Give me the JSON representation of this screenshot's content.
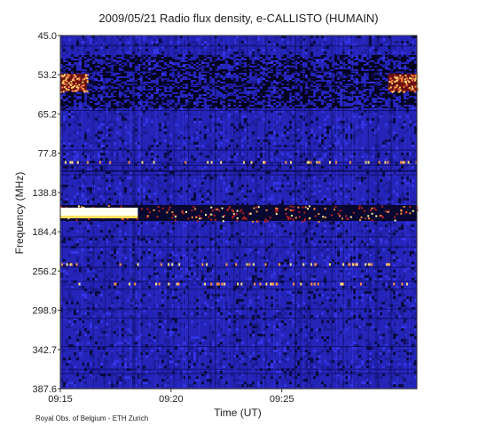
{
  "chart_data": {
    "type": "heatmap",
    "title": "2009/05/21  Radio flux density, e-CALLISTO (HUMAIN)",
    "xlabel": "Time (UT)",
    "ylabel": "Frequency (MHz)",
    "credit": "Royal Obs. of Belgium - ETH Zurich",
    "y_ticks": [
      "45.0",
      "53.2",
      "65.2",
      "77.8",
      "138.8",
      "184.4",
      "256.2",
      "298.9",
      "342.7",
      "387.6"
    ],
    "x_ticks": [
      {
        "label": "09:15",
        "minutes": 0
      },
      {
        "label": "09:20",
        "minutes": 5
      },
      {
        "label": "09:25",
        "minutes": 10
      }
    ],
    "x_range_minutes": [
      0,
      16.1
    ],
    "colormap": [
      "#000000",
      "#1a1aa8",
      "#2a2ad0",
      "#c02020",
      "#ff8040",
      "#ffffa0",
      "#ffffff"
    ],
    "features": [
      {
        "name": "interference-band",
        "freq_row": 4.5,
        "time_minutes": [
          0,
          16.1
        ],
        "intensity": 0.75
      },
      {
        "name": "saturated-burst",
        "freq_row": 4.5,
        "time_minutes": [
          0,
          3.5
        ],
        "intensity": 1.0
      },
      {
        "name": "low-freq-band-left",
        "freq_row": 1.2,
        "time_minutes": [
          0,
          1.2
        ],
        "intensity": 0.8
      },
      {
        "name": "low-freq-band-right",
        "freq_row": 1.2,
        "time_minutes": [
          14.8,
          16.1
        ],
        "intensity": 0.8
      }
    ]
  }
}
